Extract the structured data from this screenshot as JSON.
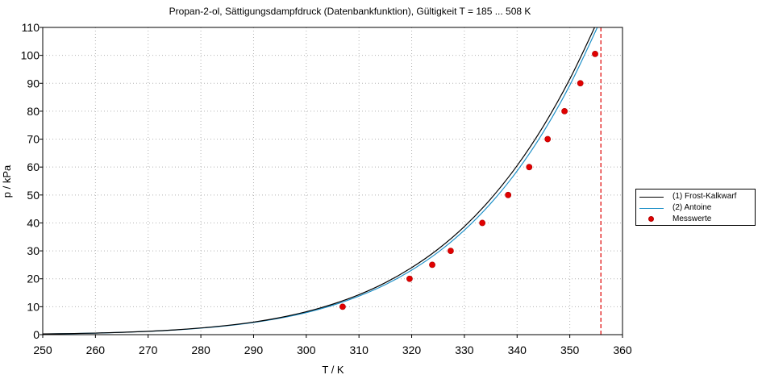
{
  "chart_data": {
    "type": "line",
    "title": "Propan-2-ol, Sättigungsdampfdruck (Datenbankfunktion), Gültigkeit T =  185 ... 508 K",
    "xlabel": "T / K",
    "ylabel": "p / kPa",
    "xlim": [
      250,
      360
    ],
    "ylim": [
      0,
      110
    ],
    "xticks": [
      250,
      260,
      270,
      280,
      290,
      300,
      310,
      320,
      330,
      340,
      350,
      360
    ],
    "yticks": [
      0,
      10,
      20,
      30,
      40,
      50,
      60,
      70,
      80,
      90,
      100,
      110
    ],
    "grid": true,
    "legend_position": "right",
    "vline": {
      "x": 355.9,
      "color": "#e00000",
      "style": "dashed"
    },
    "series": [
      {
        "name": "(1) Frost-Kalkwarf",
        "kind": "line",
        "color": "#000000",
        "x": [
          250,
          255,
          260,
          265,
          270,
          275,
          280,
          285,
          290,
          295,
          300,
          305,
          310,
          315,
          320,
          325,
          330,
          335,
          340,
          345,
          350,
          355,
          357
        ],
        "y": [
          0.25,
          0.38,
          0.56,
          0.83,
          1.2,
          1.7,
          2.4,
          3.3,
          4.5,
          6.1,
          8.2,
          10.9,
          14.3,
          18.6,
          24.0,
          30.6,
          38.7,
          48.6,
          60.5,
          74.7,
          91.5,
          111.2,
          120.0
        ]
      },
      {
        "name": "(2) Antoine",
        "kind": "line",
        "color": "#1e90c8",
        "x": [
          250,
          255,
          260,
          265,
          270,
          275,
          280,
          285,
          290,
          295,
          300,
          305,
          310,
          315,
          320,
          325,
          330,
          335,
          340,
          345,
          350,
          355,
          357
        ],
        "y": [
          0.24,
          0.37,
          0.55,
          0.81,
          1.17,
          1.66,
          2.33,
          3.21,
          4.37,
          5.9,
          7.9,
          10.5,
          13.8,
          17.9,
          23.1,
          29.5,
          37.4,
          47.0,
          58.6,
          72.6,
          89.3,
          109.1,
          118.0
        ]
      },
      {
        "name": "Messwerte",
        "kind": "scatter",
        "color": "#e00000",
        "x": [
          306.9,
          319.6,
          323.9,
          327.4,
          333.4,
          338.3,
          342.3,
          345.8,
          349.0,
          352.0,
          354.8
        ],
        "y": [
          10,
          20,
          25,
          30,
          40,
          50,
          60,
          70,
          80,
          90,
          100.5
        ]
      }
    ]
  }
}
